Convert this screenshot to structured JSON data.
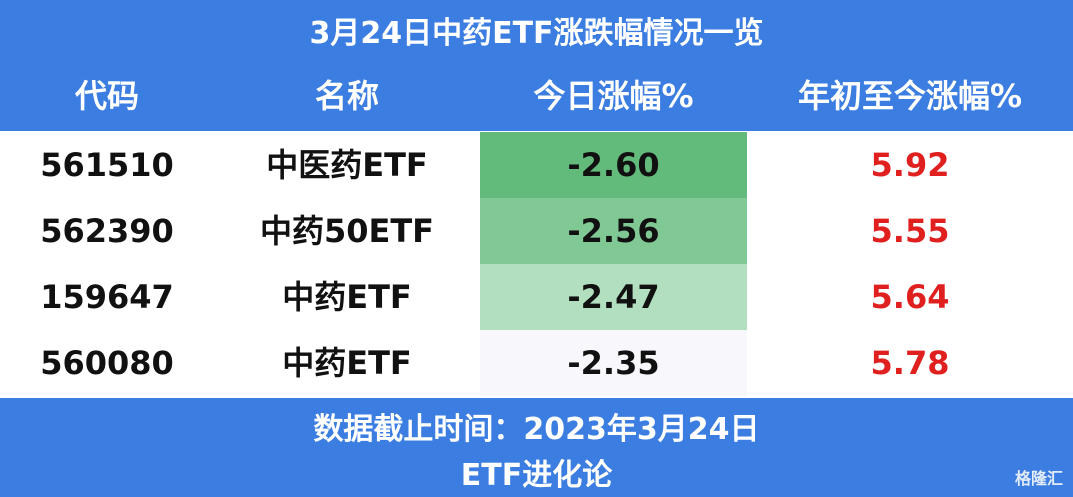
{
  "header": {
    "title": "3月24日中药ETF涨跌幅情况一览",
    "columns": [
      "代码",
      "名称",
      "今日涨幅%",
      "年初至今涨幅%"
    ]
  },
  "table": {
    "rows": [
      [
        "561510",
        "中医药ETF",
        "-2.60",
        "5.92"
      ],
      [
        "562390",
        "中药50ETF",
        "-2.56",
        "5.55"
      ],
      [
        "159647",
        "中药ETF",
        "-2.47",
        "5.64"
      ],
      [
        "560080",
        "中药ETF",
        "-2.35",
        "5.78"
      ]
    ]
  },
  "footer": {
    "date": "数据截止时间：2023年3月24日",
    "source": "ETF进化论"
  },
  "watermark": "格隆汇"
}
